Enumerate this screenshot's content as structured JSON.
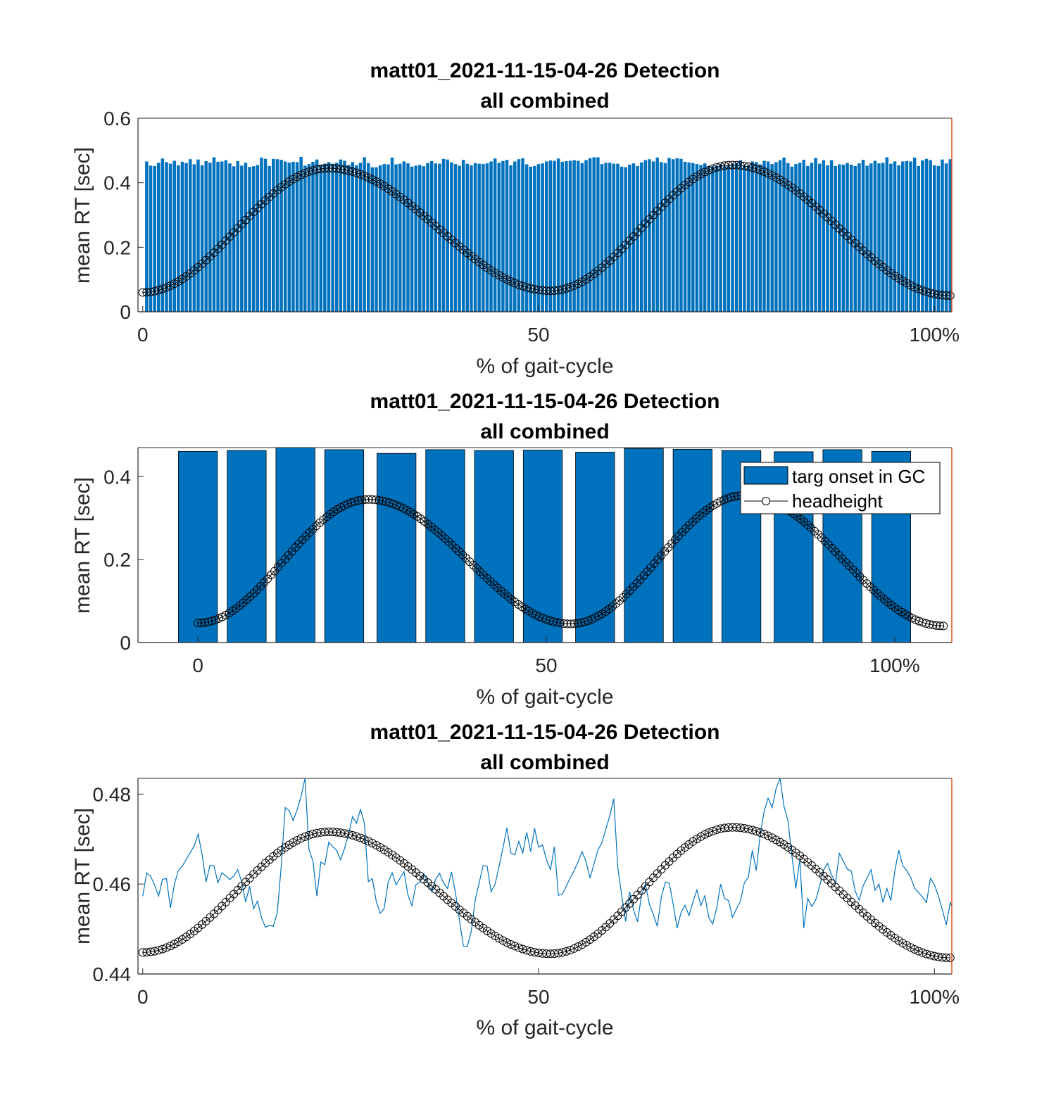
{
  "figure": {
    "title_line1": "matt01_2021-11-15-04-26 Detection",
    "title_line2": "all combined"
  },
  "colors": {
    "bar": "#0072BD",
    "line": "#0072BD",
    "marker": "#000000",
    "axis": "#262626",
    "right_edge": "#D95319"
  },
  "chart_data": [
    {
      "type": "bar",
      "title": [
        "matt01_2021-11-15-04-26 Detection",
        "all combined"
      ],
      "xlabel": "% of gait-cycle",
      "ylabel": "mean RT [sec]",
      "xlim": [
        -0.6,
        102.2
      ],
      "ylim": [
        0,
        0.6
      ],
      "xticks": [
        0,
        50,
        100
      ],
      "xticklabels": [
        "0",
        "50",
        "100%"
      ],
      "yticks": [
        0,
        0.2,
        0.4,
        0.6
      ],
      "yticklabels": [
        "0",
        "0.2",
        "0.4",
        "0.6"
      ],
      "bars": {
        "x_start": 0,
        "x_step": 0.5,
        "values": [
          0.0,
          0.466,
          0.453,
          0.452,
          0.462,
          0.475,
          0.464,
          0.459,
          0.468,
          0.454,
          0.465,
          0.461,
          0.473,
          0.457,
          0.472,
          0.454,
          0.467,
          0.462,
          0.479,
          0.465,
          0.466,
          0.47,
          0.46,
          0.451,
          0.467,
          0.453,
          0.462,
          0.449,
          0.451,
          0.455,
          0.478,
          0.474,
          0.452,
          0.474,
          0.473,
          0.471,
          0.466,
          0.462,
          0.465,
          0.464,
          0.48,
          0.453,
          0.458,
          0.465,
          0.472,
          0.456,
          0.459,
          0.464,
          0.459,
          0.462,
          0.472,
          0.468,
          0.455,
          0.464,
          0.454,
          0.462,
          0.479,
          0.461,
          0.448,
          0.448,
          0.454,
          0.458,
          0.457,
          0.478,
          0.457,
          0.459,
          0.466,
          0.46,
          0.45,
          0.453,
          0.455,
          0.451,
          0.461,
          0.467,
          0.46,
          0.459,
          0.474,
          0.472,
          0.463,
          0.458,
          0.453,
          0.471,
          0.459,
          0.454,
          0.461,
          0.459,
          0.458,
          0.46,
          0.466,
          0.475,
          0.462,
          0.467,
          0.471,
          0.454,
          0.466,
          0.473,
          0.476,
          0.457,
          0.45,
          0.452,
          0.458,
          0.46,
          0.466,
          0.469,
          0.468,
          0.475,
          0.465,
          0.467,
          0.468,
          0.47,
          0.468,
          0.461,
          0.47,
          0.476,
          0.479,
          0.479,
          0.458,
          0.462,
          0.462,
          0.459,
          0.459,
          0.45,
          0.448,
          0.456,
          0.46,
          0.452,
          0.463,
          0.47,
          0.473,
          0.466,
          0.478,
          0.464,
          0.461,
          0.477,
          0.473,
          0.476,
          0.474,
          0.465,
          0.463,
          0.461,
          0.458,
          0.455,
          0.46,
          0.452,
          0.451,
          0.453,
          0.458,
          0.451,
          0.455,
          0.458,
          0.462,
          0.47,
          0.452,
          0.454,
          0.466,
          0.464,
          0.457,
          0.468,
          0.466,
          0.458,
          0.464,
          0.47,
          0.478,
          0.461,
          0.45,
          0.458,
          0.462,
          0.471,
          0.452,
          0.462,
          0.477,
          0.459,
          0.47,
          0.454,
          0.47,
          0.452,
          0.457,
          0.456,
          0.461,
          0.456,
          0.452,
          0.46,
          0.471,
          0.453,
          0.46,
          0.468,
          0.46,
          0.462,
          0.479,
          0.459,
          0.466,
          0.454,
          0.466,
          0.467,
          0.466,
          0.478,
          0.452,
          0.469,
          0.474,
          0.47,
          0.454,
          0.452,
          0.472,
          0.46,
          0.473,
          0.457,
          0.468,
          0.452,
          0.468,
          0.477,
          0.465,
          0.472,
          0.459,
          0.463,
          0.456,
          0.45,
          0.462,
          0.452,
          0.464,
          0.46,
          0.455,
          0.448
        ]
      },
      "headheight": {
        "x_start": 0,
        "x_step": 0.5,
        "n": 205,
        "y_start": 0.06,
        "y_max1": 0.445,
        "x_max1": 23.5,
        "y_min": 0.065,
        "x_min": 51.5,
        "y_max2": 0.455,
        "x_max2": 74.5,
        "y_end": 0.05
      }
    },
    {
      "type": "bar",
      "title": [
        "matt01_2021-11-15-04-26 Detection",
        "all combined"
      ],
      "xlabel": "% of gait-cycle",
      "ylabel": "mean RT [sec]",
      "xlim": [
        -8.6,
        108.2
      ],
      "ylim": [
        0,
        0.47
      ],
      "xticks": [
        0,
        50,
        100
      ],
      "xticklabels": [
        "0",
        "50",
        "100%"
      ],
      "yticks": [
        0,
        0.2,
        0.4
      ],
      "yticklabels": [
        "0",
        "0.2",
        "0.4"
      ],
      "bars": {
        "centers": [
          0,
          7,
          14,
          21,
          28.5,
          35.5,
          42.5,
          49.5,
          57,
          64,
          71,
          78,
          85.5,
          92.5,
          99.5
        ],
        "width": 5.6,
        "values": [
          0.461,
          0.463,
          0.47,
          0.465,
          0.456,
          0.465,
          0.463,
          0.464,
          0.459,
          0.468,
          0.466,
          0.463,
          0.46,
          0.465,
          0.461
        ]
      },
      "headheight": {
        "x_start": 0,
        "x_step": 0.5,
        "n": 215,
        "y_start": 0.047,
        "y_max1": 0.345,
        "x_max1": 24.5,
        "y_min": 0.045,
        "x_min": 53.5,
        "y_max2": 0.355,
        "x_max2": 78.5,
        "y_end": 0.04
      },
      "legend": {
        "position": "top-right",
        "entries": [
          "targ onset in GC",
          "headheight"
        ]
      }
    },
    {
      "type": "line",
      "title": [
        "matt01_2021-11-15-04-26 Detection",
        "all combined"
      ],
      "xlabel": "% of gait-cycle",
      "ylabel": "mean RT [sec]",
      "xlim": [
        -0.6,
        102.2
      ],
      "ylim": [
        0.44,
        0.4835
      ],
      "xticks": [
        0,
        50,
        100
      ],
      "xticklabels": [
        "0",
        "50",
        "100%"
      ],
      "yticks": [
        0.44,
        0.46,
        0.48
      ],
      "yticklabels": [
        "0.44",
        "0.46",
        "0.48"
      ],
      "line": {
        "x_start": 0,
        "x_step": 0.5,
        "values": [
          0.4573,
          0.4625,
          0.4617,
          0.4598,
          0.4573,
          0.4611,
          0.4612,
          0.4547,
          0.46,
          0.463,
          0.464,
          0.4655,
          0.467,
          0.4685,
          0.4711,
          0.4665,
          0.4605,
          0.4642,
          0.464,
          0.4603,
          0.4625,
          0.4618,
          0.461,
          0.4618,
          0.4632,
          0.4605,
          0.456,
          0.4595,
          0.4545,
          0.4562,
          0.4525,
          0.4504,
          0.4508,
          0.4506,
          0.4537,
          0.4641,
          0.477,
          0.4763,
          0.4741,
          0.4765,
          0.4795,
          0.4835,
          0.4677,
          0.4651,
          0.4573,
          0.4649,
          0.4643,
          0.4693,
          0.4683,
          0.4675,
          0.4654,
          0.468,
          0.471,
          0.475,
          0.4735,
          0.4766,
          0.4735,
          0.4605,
          0.4612,
          0.4561,
          0.4535,
          0.4546,
          0.4604,
          0.4625,
          0.4598,
          0.4613,
          0.4628,
          0.4576,
          0.4552,
          0.4598,
          0.4605,
          0.4623,
          0.4604,
          0.4583,
          0.4611,
          0.4624,
          0.4602,
          0.459,
          0.4627,
          0.4581,
          0.452,
          0.4462,
          0.4461,
          0.4495,
          0.4565,
          0.4603,
          0.4641,
          0.464,
          0.4583,
          0.4599,
          0.4638,
          0.468,
          0.4725,
          0.4669,
          0.4665,
          0.4695,
          0.4669,
          0.4715,
          0.4672,
          0.4724,
          0.4682,
          0.4687,
          0.4654,
          0.4632,
          0.4683,
          0.4575,
          0.4578,
          0.4595,
          0.4614,
          0.463,
          0.465,
          0.4672,
          0.465,
          0.4613,
          0.4645,
          0.4675,
          0.4692,
          0.4722,
          0.4752,
          0.479,
          0.4638,
          0.4575,
          0.4517,
          0.4583,
          0.4542,
          0.4516,
          0.4574,
          0.46,
          0.4555,
          0.4532,
          0.4506,
          0.457,
          0.4604,
          0.4602,
          0.4556,
          0.4502,
          0.4537,
          0.4553,
          0.453,
          0.456,
          0.4587,
          0.4552,
          0.4574,
          0.4526,
          0.4511,
          0.4547,
          0.46,
          0.4568,
          0.4563,
          0.4526,
          0.4545,
          0.4562,
          0.4603,
          0.4615,
          0.4675,
          0.463,
          0.471,
          0.4762,
          0.4791,
          0.477,
          0.4812,
          0.4835,
          0.4773,
          0.4741,
          0.4663,
          0.459,
          0.4655,
          0.4502,
          0.4568,
          0.455,
          0.4564,
          0.4595,
          0.4631,
          0.4646,
          0.4621,
          0.4603,
          0.4668,
          0.4651,
          0.4633,
          0.4629,
          0.4584,
          0.4564,
          0.4596,
          0.4614,
          0.4632,
          0.4586,
          0.46,
          0.4559,
          0.459,
          0.4563,
          0.4629,
          0.4675,
          0.4641,
          0.463,
          0.4615,
          0.4591,
          0.4581,
          0.4571,
          0.4559,
          0.4613,
          0.4598,
          0.4574,
          0.4543,
          0.4509,
          0.4559,
          0.4535,
          0.4514,
          0.4575,
          0.4604,
          0.4651,
          0.4598,
          0.4583,
          0.46,
          0.4573,
          0.4518,
          0.4545,
          0.4618,
          0.4586,
          0.4615,
          0.4636,
          0.4601,
          0.4609,
          0.462,
          0.4599,
          0.458
        ]
      },
      "headheight": {
        "x_start": 0,
        "x_step": 0.5,
        "n": 205,
        "y_start": 0.4448,
        "y_max1": 0.4716,
        "x_max1": 23.5,
        "y_min": 0.4445,
        "x_min": 51.5,
        "y_max2": 0.4726,
        "x_max2": 74.5,
        "y_end": 0.4436
      }
    }
  ]
}
